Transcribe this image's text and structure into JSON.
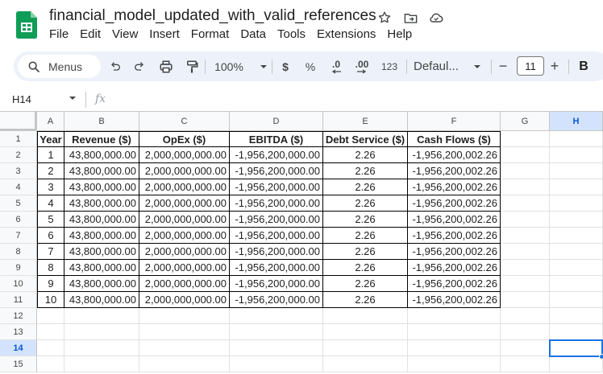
{
  "file": {
    "title": "financial_model_updated_with_valid_references"
  },
  "menu": [
    "File",
    "Edit",
    "View",
    "Insert",
    "Format",
    "Data",
    "Tools",
    "Extensions",
    "Help"
  ],
  "toolbar": {
    "search_label": "Menus",
    "zoom": "100%",
    "currency": "$",
    "percent": "%",
    "decrease_decimal": ".0",
    "increase_decimal": ".00",
    "number_format": "123",
    "font": "Defaul...",
    "font_size": "11",
    "minus": "−",
    "plus": "+",
    "bold": "B"
  },
  "formula_bar": {
    "name_box": "H14",
    "fx": "fx"
  },
  "columns": [
    "A",
    "B",
    "C",
    "D",
    "E",
    "F",
    "G",
    "H"
  ],
  "selected_column": "H",
  "rows": [
    "1",
    "2",
    "3",
    "4",
    "5",
    "6",
    "7",
    "8",
    "9",
    "10",
    "11",
    "12",
    "13",
    "14",
    "15"
  ],
  "selected_row": "14",
  "table": {
    "headers": [
      "Year",
      "Revenue ($)",
      "OpEx ($)",
      "EBITDA ($)",
      "Debt Service ($)",
      "Cash Flows ($)"
    ],
    "rows": [
      [
        "1",
        "43,800,000.00",
        "2,000,000,000.00",
        "-1,956,200,000.00",
        "2.26",
        "-1,956,200,002.26"
      ],
      [
        "2",
        "43,800,000.00",
        "2,000,000,000.00",
        "-1,956,200,000.00",
        "2.26",
        "-1,956,200,002.26"
      ],
      [
        "3",
        "43,800,000.00",
        "2,000,000,000.00",
        "-1,956,200,000.00",
        "2.26",
        "-1,956,200,002.26"
      ],
      [
        "4",
        "43,800,000.00",
        "2,000,000,000.00",
        "-1,956,200,000.00",
        "2.26",
        "-1,956,200,002.26"
      ],
      [
        "5",
        "43,800,000.00",
        "2,000,000,000.00",
        "-1,956,200,000.00",
        "2.26",
        "-1,956,200,002.26"
      ],
      [
        "6",
        "43,800,000.00",
        "2,000,000,000.00",
        "-1,956,200,000.00",
        "2.26",
        "-1,956,200,002.26"
      ],
      [
        "7",
        "43,800,000.00",
        "2,000,000,000.00",
        "-1,956,200,000.00",
        "2.26",
        "-1,956,200,002.26"
      ],
      [
        "8",
        "43,800,000.00",
        "2,000,000,000.00",
        "-1,956,200,000.00",
        "2.26",
        "-1,956,200,002.26"
      ],
      [
        "9",
        "43,800,000.00",
        "2,000,000,000.00",
        "-1,956,200,000.00",
        "2.26",
        "-1,956,200,002.26"
      ],
      [
        "10",
        "43,800,000.00",
        "2,000,000,000.00",
        "-1,956,200,000.00",
        "2.26",
        "-1,956,200,002.26"
      ]
    ]
  },
  "colors": {
    "accent": "#1a73e8",
    "toolbar_bg": "#edf2fa",
    "sheets_green": "#0f9d58"
  }
}
